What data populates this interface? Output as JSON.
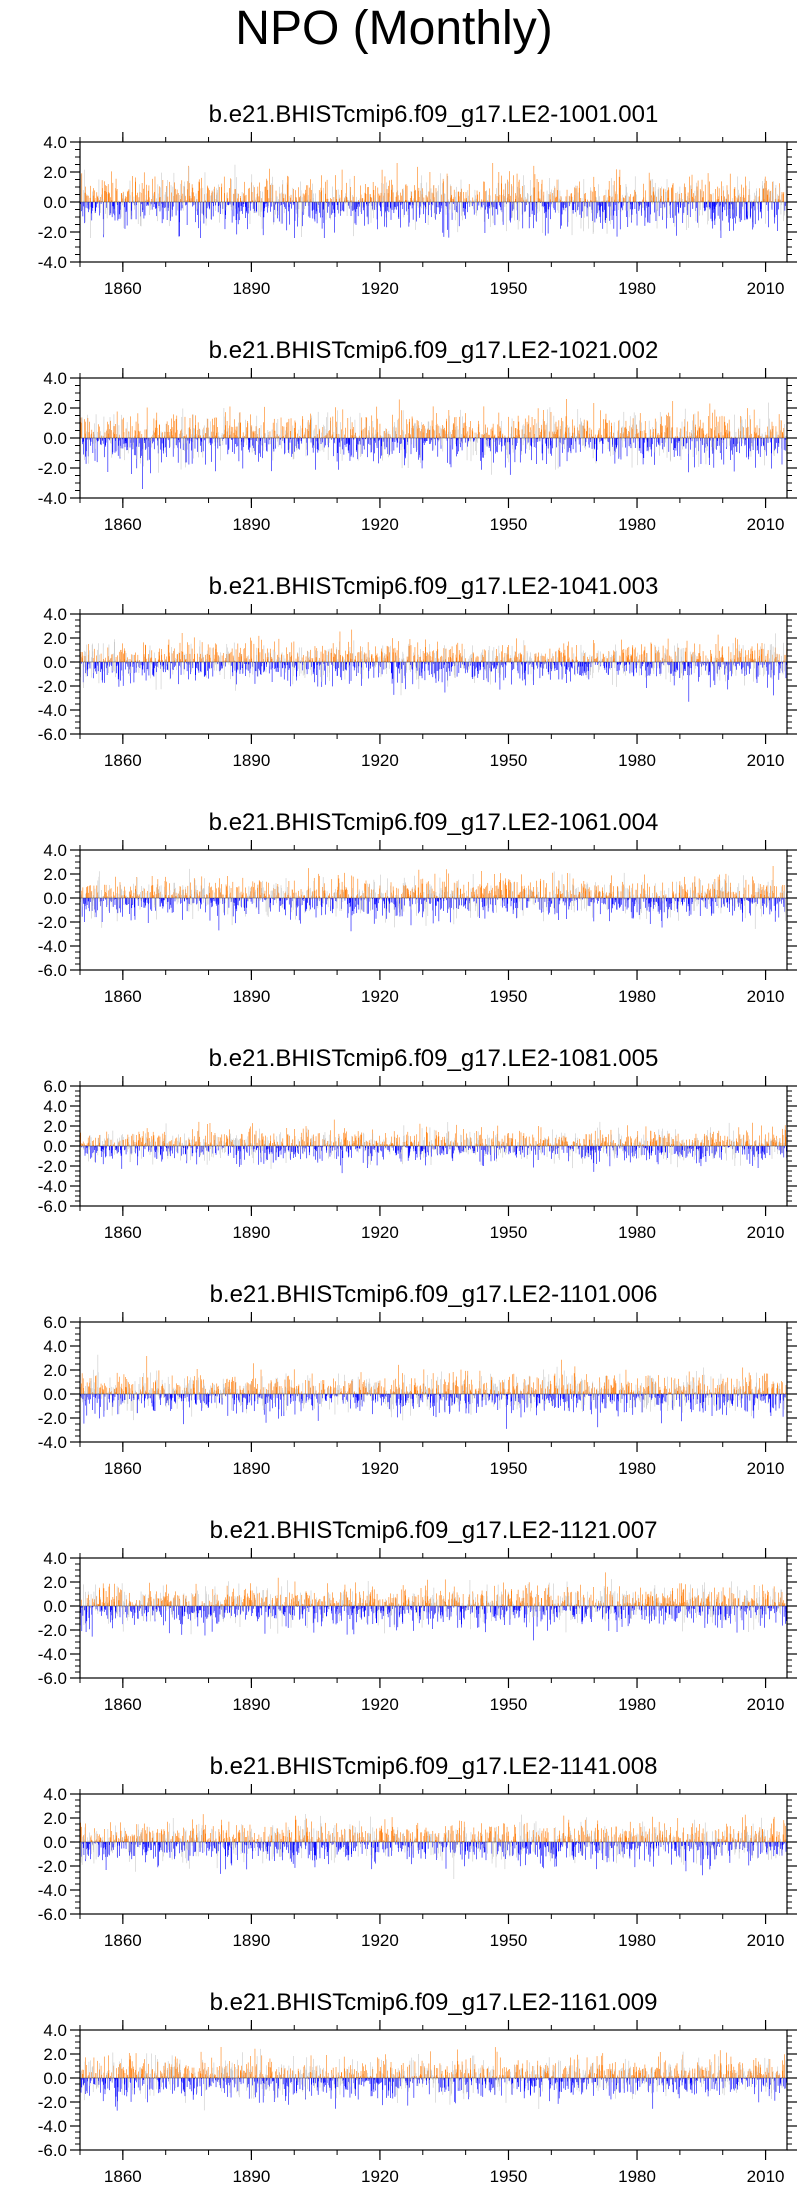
{
  "title": "NPO (Monthly)",
  "colors": {
    "positive": "#ff7f0e",
    "negative": "#0000ff",
    "faint": "#c8c8c8",
    "axis": "#000000"
  },
  "chart_data": [
    {
      "type": "bar",
      "title": "b.e21.BHISTcmip6.f09_g17.LE2-1001.001",
      "xlabel": "",
      "ylabel": "",
      "xlim": [
        1850,
        2015
      ],
      "ylim": [
        -4,
        4
      ],
      "yticks": [
        4,
        2,
        0,
        -2,
        -4
      ],
      "xticks": [
        1860,
        1890,
        1920,
        1950,
        1980,
        2010
      ],
      "ytick_labels": [
        "4.0",
        "2.0",
        "0.0",
        "-2.0",
        "-4.0"
      ],
      "xtick_labels": [
        "1860",
        "1890",
        "1920",
        "1950",
        "1980",
        "2010"
      ],
      "seed": 1001,
      "approx_max": 2.6,
      "approx_min": -2.4
    },
    {
      "type": "bar",
      "title": "b.e21.BHISTcmip6.f09_g17.LE2-1021.002",
      "xlabel": "",
      "ylabel": "",
      "xlim": [
        1850,
        2015
      ],
      "ylim": [
        -4,
        4
      ],
      "yticks": [
        4,
        2,
        0,
        -2,
        -4
      ],
      "xticks": [
        1860,
        1890,
        1920,
        1950,
        1980,
        2010
      ],
      "ytick_labels": [
        "4.0",
        "2.0",
        "0.0",
        "-2.0",
        "-4.0"
      ],
      "xtick_labels": [
        "1860",
        "1890",
        "1920",
        "1950",
        "1980",
        "2010"
      ],
      "seed": 1021,
      "approx_max": 2.6,
      "approx_min": -3.4
    },
    {
      "type": "bar",
      "title": "b.e21.BHISTcmip6.f09_g17.LE2-1041.003",
      "xlabel": "",
      "ylabel": "",
      "xlim": [
        1850,
        2015
      ],
      "ylim": [
        -6,
        4
      ],
      "yticks": [
        4,
        2,
        0,
        -2,
        -4,
        -6
      ],
      "xticks": [
        1860,
        1890,
        1920,
        1950,
        1980,
        2010
      ],
      "ytick_labels": [
        "4.0",
        "2.0",
        "0.0",
        "-2.0",
        "-4.0",
        "-6.0"
      ],
      "xtick_labels": [
        "1860",
        "1890",
        "1920",
        "1950",
        "1980",
        "2010"
      ],
      "seed": 1041,
      "approx_max": 3.2,
      "approx_min": -3.4
    },
    {
      "type": "bar",
      "title": "b.e21.BHISTcmip6.f09_g17.LE2-1061.004",
      "xlabel": "",
      "ylabel": "",
      "xlim": [
        1850,
        2015
      ],
      "ylim": [
        -6,
        4
      ],
      "yticks": [
        4,
        2,
        0,
        -2,
        -4,
        -6
      ],
      "xticks": [
        1860,
        1890,
        1920,
        1950,
        1980,
        2010
      ],
      "ytick_labels": [
        "4.0",
        "2.0",
        "0.0",
        "-2.0",
        "-4.0",
        "-6.0"
      ],
      "xtick_labels": [
        "1860",
        "1890",
        "1920",
        "1950",
        "1980",
        "2010"
      ],
      "seed": 1061,
      "approx_max": 2.8,
      "approx_min": -3.2
    },
    {
      "type": "bar",
      "title": "b.e21.BHISTcmip6.f09_g17.LE2-1081.005",
      "xlabel": "",
      "ylabel": "",
      "xlim": [
        1850,
        2015
      ],
      "ylim": [
        -6,
        6
      ],
      "yticks": [
        6,
        4,
        2,
        0,
        -2,
        -4,
        -6
      ],
      "xticks": [
        1860,
        1890,
        1920,
        1950,
        1980,
        2010
      ],
      "ytick_labels": [
        "6.0",
        "4.0",
        "2.0",
        "0.0",
        "-2.0",
        "-4.0",
        "-6.0"
      ],
      "xtick_labels": [
        "1860",
        "1890",
        "1920",
        "1950",
        "1980",
        "2010"
      ],
      "seed": 1081,
      "approx_max": 3.0,
      "approx_min": -3.4
    },
    {
      "type": "bar",
      "title": "b.e21.BHISTcmip6.f09_g17.LE2-1101.006",
      "xlabel": "",
      "ylabel": "",
      "xlim": [
        1850,
        2015
      ],
      "ylim": [
        -4,
        6
      ],
      "yticks": [
        6,
        4,
        2,
        0,
        -2,
        -4
      ],
      "xticks": [
        1860,
        1890,
        1920,
        1950,
        1980,
        2010
      ],
      "ytick_labels": [
        "6.0",
        "4.0",
        "2.0",
        "0.0",
        "-2.0",
        "-4.0"
      ],
      "xtick_labels": [
        "1860",
        "1890",
        "1920",
        "1950",
        "1980",
        "2010"
      ],
      "seed": 1101,
      "approx_max": 4.4,
      "approx_min": -3.2
    },
    {
      "type": "bar",
      "title": "b.e21.BHISTcmip6.f09_g17.LE2-1121.007",
      "xlabel": "",
      "ylabel": "",
      "xlim": [
        1850,
        2015
      ],
      "ylim": [
        -6,
        4
      ],
      "yticks": [
        4,
        2,
        0,
        -2,
        -4,
        -6
      ],
      "xticks": [
        1860,
        1890,
        1920,
        1950,
        1980,
        2010
      ],
      "ytick_labels": [
        "4.0",
        "2.0",
        "0.0",
        "-2.0",
        "-4.0",
        "-6.0"
      ],
      "xtick_labels": [
        "1860",
        "1890",
        "1920",
        "1950",
        "1980",
        "2010"
      ],
      "seed": 1121,
      "approx_max": 2.8,
      "approx_min": -3.6
    },
    {
      "type": "bar",
      "title": "b.e21.BHISTcmip6.f09_g17.LE2-1141.008",
      "xlabel": "",
      "ylabel": "",
      "xlim": [
        1850,
        2015
      ],
      "ylim": [
        -6,
        4
      ],
      "yticks": [
        4,
        2,
        0,
        -2,
        -4,
        -6
      ],
      "xticks": [
        1860,
        1890,
        1920,
        1950,
        1980,
        2010
      ],
      "ytick_labels": [
        "4.0",
        "2.0",
        "0.0",
        "-2.0",
        "-4.0",
        "-6.0"
      ],
      "xtick_labels": [
        "1860",
        "1890",
        "1920",
        "1950",
        "1980",
        "2010"
      ],
      "seed": 1141,
      "approx_max": 2.8,
      "approx_min": -3.2
    },
    {
      "type": "bar",
      "title": "b.e21.BHISTcmip6.f09_g17.LE2-1161.009",
      "xlabel": "",
      "ylabel": "",
      "xlim": [
        1850,
        2015
      ],
      "ylim": [
        -6,
        4
      ],
      "yticks": [
        4,
        2,
        0,
        -2,
        -4,
        -6
      ],
      "xticks": [
        1860,
        1890,
        1920,
        1950,
        1980,
        2010
      ],
      "ytick_labels": [
        "4.0",
        "2.0",
        "0.0",
        "-2.0",
        "-4.0",
        "-6.0"
      ],
      "xtick_labels": [
        "1860",
        "1890",
        "1920",
        "1950",
        "1980",
        "2010"
      ],
      "seed": 1161,
      "approx_max": 2.8,
      "approx_min": -3.4
    }
  ]
}
